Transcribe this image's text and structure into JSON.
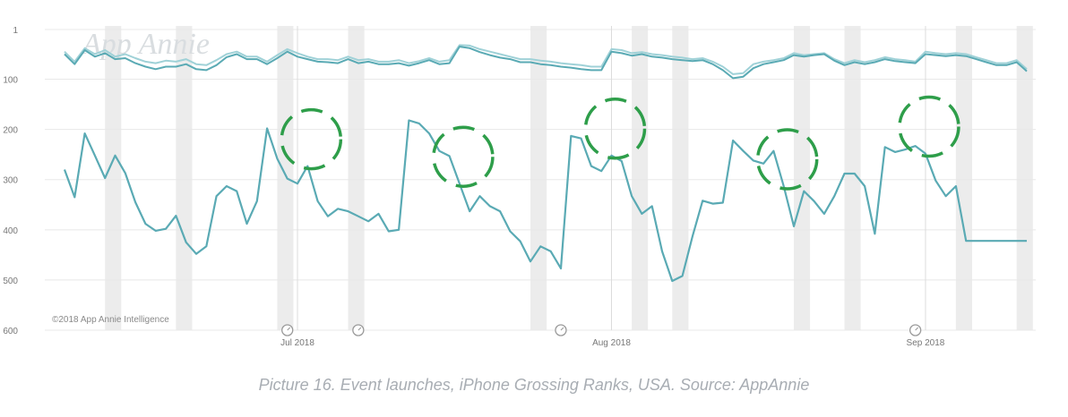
{
  "caption": "Picture 16. Event launches, iPhone Grossing Ranks, USA. Source: AppAnnie",
  "chart_data": {
    "type": "line",
    "title": "",
    "xlabel": "",
    "ylabel": "",
    "ylim": [
      600,
      1
    ],
    "y_inverted": true,
    "y_ticks": [
      1,
      100,
      200,
      300,
      400,
      500,
      600
    ],
    "x_domain": [
      "2018-06-08",
      "2018-09-11"
    ],
    "x_ticks": [
      {
        "date": "2018-07-01",
        "label": "Jul 2018"
      },
      {
        "date": "2018-08-01",
        "label": "Aug 2018"
      },
      {
        "date": "2018-09-01",
        "label": "Sep 2018"
      }
    ],
    "watermark": "App Annie",
    "copyright": "©2018 App Annie Intelligence",
    "colors": {
      "line": "#5aaab4",
      "line_light": "#9fd1d7",
      "highlight": "#2e9e4a",
      "weekend_band": "#ececec",
      "grid": "#e8e8e8",
      "axis_text": "#777777"
    },
    "weekend_bands": [
      "2018-06-12",
      "2018-06-19",
      "2018-06-29",
      "2018-07-06",
      "2018-07-24",
      "2018-08-03",
      "2018-08-07",
      "2018-08-19",
      "2018-08-24",
      "2018-09-04",
      "2018-09-10"
    ],
    "event_markers": [
      "2018-06-30",
      "2018-07-07",
      "2018-07-27",
      "2018-08-31"
    ],
    "highlight_circles": [
      "2018-07-02",
      "2018-07-17",
      "2018-08-01",
      "2018-08-18",
      "2018-09-01"
    ],
    "series": [
      {
        "x": [
          "2018-06-08",
          "2018-06-09",
          "2018-06-10",
          "2018-06-11",
          "2018-06-12",
          "2018-06-13",
          "2018-06-14",
          "2018-06-15",
          "2018-06-16",
          "2018-06-17",
          "2018-06-18",
          "2018-06-19",
          "2018-06-20",
          "2018-06-21",
          "2018-06-22",
          "2018-06-23",
          "2018-06-24",
          "2018-06-25",
          "2018-06-26",
          "2018-06-27",
          "2018-06-28",
          "2018-06-29",
          "2018-06-30",
          "2018-07-01",
          "2018-07-02",
          "2018-07-03",
          "2018-07-04",
          "2018-07-05",
          "2018-07-06",
          "2018-07-07",
          "2018-07-08",
          "2018-07-09",
          "2018-07-10",
          "2018-07-11",
          "2018-07-12",
          "2018-07-13",
          "2018-07-14",
          "2018-07-15",
          "2018-07-16",
          "2018-07-17",
          "2018-07-18",
          "2018-07-19",
          "2018-07-20",
          "2018-07-21",
          "2018-07-22",
          "2018-07-23",
          "2018-07-24",
          "2018-07-25",
          "2018-07-26",
          "2018-07-27",
          "2018-07-28",
          "2018-07-29",
          "2018-07-30",
          "2018-07-31",
          "2018-08-01",
          "2018-08-02",
          "2018-08-03",
          "2018-08-04",
          "2018-08-05",
          "2018-08-06",
          "2018-08-07",
          "2018-08-08",
          "2018-08-09",
          "2018-08-10",
          "2018-08-11",
          "2018-08-12",
          "2018-08-13",
          "2018-08-14",
          "2018-08-15",
          "2018-08-16",
          "2018-08-17",
          "2018-08-18",
          "2018-08-19",
          "2018-08-20",
          "2018-08-21",
          "2018-08-22",
          "2018-08-23",
          "2018-08-24",
          "2018-08-25",
          "2018-08-26",
          "2018-08-27",
          "2018-08-28",
          "2018-08-29",
          "2018-08-30",
          "2018-08-31",
          "2018-09-01",
          "2018-09-02",
          "2018-09-03",
          "2018-09-04",
          "2018-09-05",
          "2018-09-06",
          "2018-09-07",
          "2018-09-08",
          "2018-09-09",
          "2018-09-10",
          "2018-09-11"
        ],
        "y": [
          45,
          65,
          38,
          50,
          42,
          55,
          50,
          58,
          65,
          68,
          63,
          65,
          60,
          70,
          72,
          62,
          50,
          45,
          55,
          55,
          65,
          52,
          40,
          48,
          55,
          60,
          60,
          62,
          55,
          62,
          60,
          65,
          65,
          62,
          68,
          64,
          58,
          65,
          62,
          32,
          33,
          40,
          45,
          50,
          55,
          60,
          60,
          63,
          65,
          68,
          70,
          72,
          75,
          75,
          40,
          42,
          48,
          46,
          50,
          52,
          55,
          57,
          60,
          58,
          65,
          75,
          90,
          88,
          70,
          65,
          62,
          58,
          48,
          52,
          50,
          48,
          60,
          68,
          62,
          66,
          62,
          56,
          60,
          62,
          65,
          45,
          48,
          50,
          48,
          50,
          56,
          62,
          68,
          68,
          62,
          80
        ]
      },
      {
        "x": [
          "2018-06-08",
          "2018-06-09",
          "2018-06-10",
          "2018-06-11",
          "2018-06-12",
          "2018-06-13",
          "2018-06-14",
          "2018-06-15",
          "2018-06-16",
          "2018-06-17",
          "2018-06-18",
          "2018-06-19",
          "2018-06-20",
          "2018-06-21",
          "2018-06-22",
          "2018-06-23",
          "2018-06-24",
          "2018-06-25",
          "2018-06-26",
          "2018-06-27",
          "2018-06-28",
          "2018-06-29",
          "2018-06-30",
          "2018-07-01",
          "2018-07-02",
          "2018-07-03",
          "2018-07-04",
          "2018-07-05",
          "2018-07-06",
          "2018-07-07",
          "2018-07-08",
          "2018-07-09",
          "2018-07-10",
          "2018-07-11",
          "2018-07-12",
          "2018-07-13",
          "2018-07-14",
          "2018-07-15",
          "2018-07-16",
          "2018-07-17",
          "2018-07-18",
          "2018-07-19",
          "2018-07-20",
          "2018-07-21",
          "2018-07-22",
          "2018-07-23",
          "2018-07-24",
          "2018-07-25",
          "2018-07-26",
          "2018-07-27",
          "2018-07-28",
          "2018-07-29",
          "2018-07-30",
          "2018-07-31",
          "2018-08-01",
          "2018-08-02",
          "2018-08-03",
          "2018-08-04",
          "2018-08-05",
          "2018-08-06",
          "2018-08-07",
          "2018-08-08",
          "2018-08-09",
          "2018-08-10",
          "2018-08-11",
          "2018-08-12",
          "2018-08-13",
          "2018-08-14",
          "2018-08-15",
          "2018-08-16",
          "2018-08-17",
          "2018-08-18",
          "2018-08-19",
          "2018-08-20",
          "2018-08-21",
          "2018-08-22",
          "2018-08-23",
          "2018-08-24",
          "2018-08-25",
          "2018-08-26",
          "2018-08-27",
          "2018-08-28",
          "2018-08-29",
          "2018-08-30",
          "2018-08-31",
          "2018-09-01",
          "2018-09-02",
          "2018-09-03",
          "2018-09-04",
          "2018-09-05",
          "2018-09-06",
          "2018-09-07",
          "2018-09-08",
          "2018-09-09",
          "2018-09-10",
          "2018-09-11"
        ],
        "y": [
          50,
          70,
          42,
          55,
          48,
          60,
          58,
          68,
          75,
          80,
          75,
          75,
          70,
          80,
          82,
          72,
          56,
          50,
          60,
          60,
          70,
          58,
          45,
          55,
          60,
          65,
          66,
          68,
          60,
          68,
          65,
          70,
          70,
          68,
          73,
          68,
          62,
          70,
          68,
          35,
          38,
          46,
          52,
          57,
          60,
          66,
          66,
          70,
          72,
          75,
          77,
          80,
          82,
          82,
          45,
          48,
          53,
          50,
          55,
          57,
          60,
          62,
          64,
          62,
          70,
          82,
          98,
          95,
          78,
          70,
          66,
          62,
          52,
          55,
          52,
          50,
          63,
          72,
          66,
          70,
          66,
          60,
          64,
          66,
          68,
          50,
          52,
          54,
          52,
          54,
          60,
          66,
          72,
          72,
          66,
          84
        ]
      },
      {
        "x": [
          "2018-06-08",
          "2018-06-09",
          "2018-06-10",
          "2018-06-11",
          "2018-06-12",
          "2018-06-13",
          "2018-06-14",
          "2018-06-15",
          "2018-06-16",
          "2018-06-17",
          "2018-06-18",
          "2018-06-19",
          "2018-06-20",
          "2018-06-21",
          "2018-06-22",
          "2018-06-23",
          "2018-06-24",
          "2018-06-25",
          "2018-06-26",
          "2018-06-27",
          "2018-06-28",
          "2018-06-29",
          "2018-06-30",
          "2018-07-01",
          "2018-07-02",
          "2018-07-03",
          "2018-07-04",
          "2018-07-05",
          "2018-07-06",
          "2018-07-07",
          "2018-07-08",
          "2018-07-09",
          "2018-07-10",
          "2018-07-11",
          "2018-07-12",
          "2018-07-13",
          "2018-07-14",
          "2018-07-15",
          "2018-07-16",
          "2018-07-17",
          "2018-07-18",
          "2018-07-19",
          "2018-07-20",
          "2018-07-21",
          "2018-07-22",
          "2018-07-23",
          "2018-07-24",
          "2018-07-25",
          "2018-07-26",
          "2018-07-27",
          "2018-07-28",
          "2018-07-29",
          "2018-07-30",
          "2018-07-31",
          "2018-08-01",
          "2018-08-02",
          "2018-08-03",
          "2018-08-04",
          "2018-08-05",
          "2018-08-06",
          "2018-08-07",
          "2018-08-08",
          "2018-08-09",
          "2018-08-10",
          "2018-08-11",
          "2018-08-12",
          "2018-08-13",
          "2018-08-14",
          "2018-08-15",
          "2018-08-16",
          "2018-08-17",
          "2018-08-18",
          "2018-08-19",
          "2018-08-20",
          "2018-08-21",
          "2018-08-22",
          "2018-08-23",
          "2018-08-24",
          "2018-08-25",
          "2018-08-26",
          "2018-08-27",
          "2018-08-28",
          "2018-08-29",
          "2018-08-30",
          "2018-08-31",
          "2018-09-01",
          "2018-09-02",
          "2018-09-03",
          "2018-09-04",
          "2018-09-05",
          "2018-09-06",
          "2018-09-07",
          "2018-09-08",
          "2018-09-09",
          "2018-09-10",
          "2018-09-11"
        ],
        "y": [
          280,
          335,
          208,
          252,
          297,
          252,
          287,
          345,
          388,
          402,
          398,
          372,
          425,
          448,
          433,
          333,
          313,
          323,
          388,
          343,
          198,
          258,
          298,
          308,
          273,
          343,
          373,
          358,
          363,
          373,
          383,
          368,
          403,
          400,
          182,
          188,
          208,
          243,
          253,
          308,
          363,
          333,
          353,
          363,
          403,
          423,
          463,
          433,
          443,
          477,
          213,
          218,
          273,
          283,
          252,
          263,
          333,
          368,
          353,
          443,
          502,
          492,
          413,
          342,
          348,
          346,
          222,
          243,
          262,
          268,
          243,
          313,
          393,
          323,
          343,
          368,
          333,
          288,
          288,
          313,
          408,
          235,
          245,
          240,
          233,
          248,
          302,
          333,
          313,
          422,
          422,
          422,
          422,
          422,
          422,
          422
        ]
      }
    ]
  }
}
